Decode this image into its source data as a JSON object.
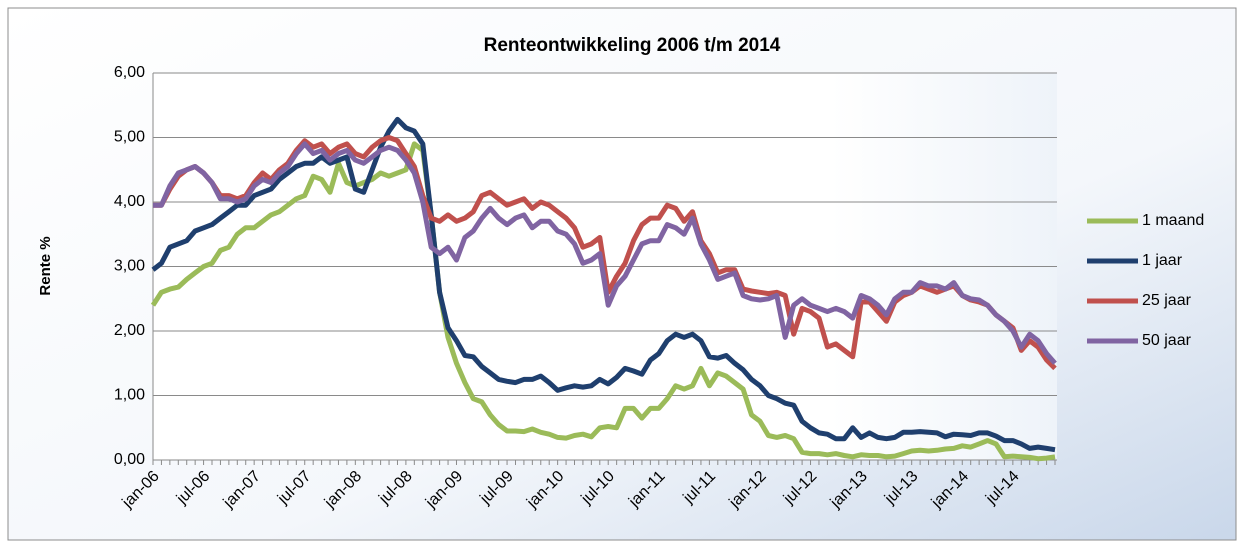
{
  "chart_data": {
    "type": "line",
    "title": "Renteontwikkeling 2006 t/m 2014",
    "y_label": "Rente %",
    "categories": [
      "jan-06",
      null,
      null,
      null,
      null,
      null,
      "jul-06",
      null,
      null,
      null,
      null,
      null,
      "jan-07",
      null,
      null,
      null,
      null,
      null,
      "jul-07",
      null,
      null,
      null,
      null,
      null,
      "jan-08",
      null,
      null,
      null,
      null,
      null,
      "jul-08",
      null,
      null,
      null,
      null,
      null,
      "jan-09",
      null,
      null,
      null,
      null,
      null,
      "jul-09",
      null,
      null,
      null,
      null,
      null,
      "jan-10",
      null,
      null,
      null,
      null,
      null,
      "jul-10",
      null,
      null,
      null,
      null,
      null,
      "jan-11",
      null,
      null,
      null,
      null,
      null,
      "jul-11",
      null,
      null,
      null,
      null,
      null,
      "jan-12",
      null,
      null,
      null,
      null,
      null,
      "jul-12",
      null,
      null,
      null,
      null,
      null,
      "jan-13",
      null,
      null,
      null,
      null,
      null,
      "jul-13",
      null,
      null,
      null,
      null,
      null,
      "jan-14",
      null,
      null,
      null,
      null,
      null,
      "jul-14",
      null,
      null,
      null,
      null,
      null
    ],
    "series": [
      {
        "name": "1 maand",
        "color": "#9bbb59",
        "values": [
          2.4,
          2.6,
          2.65,
          2.68,
          2.8,
          2.9,
          3.0,
          3.05,
          3.25,
          3.3,
          3.5,
          3.6,
          3.6,
          3.7,
          3.8,
          3.85,
          3.95,
          4.05,
          4.1,
          4.4,
          4.35,
          4.15,
          4.6,
          4.3,
          4.25,
          4.3,
          4.35,
          4.45,
          4.4,
          4.45,
          4.5,
          4.9,
          4.8,
          3.8,
          2.6,
          1.9,
          1.5,
          1.2,
          0.95,
          0.9,
          0.7,
          0.55,
          0.45,
          0.45,
          0.44,
          0.48,
          0.43,
          0.4,
          0.35,
          0.34,
          0.38,
          0.4,
          0.36,
          0.5,
          0.52,
          0.5,
          0.8,
          0.8,
          0.65,
          0.8,
          0.8,
          0.95,
          1.15,
          1.1,
          1.15,
          1.42,
          1.15,
          1.35,
          1.3,
          1.2,
          1.1,
          0.7,
          0.6,
          0.38,
          0.35,
          0.38,
          0.33,
          0.12,
          0.1,
          0.1,
          0.08,
          0.1,
          0.07,
          0.05,
          0.08,
          0.07,
          0.07,
          0.05,
          0.06,
          0.1,
          0.14,
          0.15,
          0.14,
          0.15,
          0.17,
          0.18,
          0.22,
          0.2,
          0.25,
          0.3,
          0.25,
          0.05,
          0.06,
          0.05,
          0.04,
          0.02,
          0.03,
          0.05
        ]
      },
      {
        "name": "1 jaar",
        "color": "#1f3f6e",
        "values": [
          2.95,
          3.05,
          3.3,
          3.35,
          3.4,
          3.55,
          3.6,
          3.65,
          3.75,
          3.85,
          3.95,
          3.95,
          4.1,
          4.15,
          4.2,
          4.35,
          4.45,
          4.55,
          4.6,
          4.6,
          4.7,
          4.6,
          4.65,
          4.7,
          4.2,
          4.15,
          4.5,
          4.85,
          5.1,
          5.28,
          5.15,
          5.1,
          4.9,
          3.8,
          2.6,
          2.05,
          1.85,
          1.62,
          1.6,
          1.45,
          1.35,
          1.25,
          1.22,
          1.2,
          1.25,
          1.25,
          1.3,
          1.2,
          1.08,
          1.12,
          1.15,
          1.13,
          1.15,
          1.25,
          1.18,
          1.28,
          1.42,
          1.38,
          1.33,
          1.55,
          1.65,
          1.85,
          1.95,
          1.9,
          1.95,
          1.85,
          1.6,
          1.58,
          1.62,
          1.5,
          1.4,
          1.25,
          1.15,
          1.0,
          0.95,
          0.88,
          0.85,
          0.6,
          0.5,
          0.42,
          0.4,
          0.33,
          0.33,
          0.5,
          0.35,
          0.42,
          0.35,
          0.33,
          0.35,
          0.43,
          0.43,
          0.44,
          0.43,
          0.42,
          0.36,
          0.4,
          0.39,
          0.38,
          0.42,
          0.42,
          0.37,
          0.3,
          0.3,
          0.25,
          0.18,
          0.2,
          0.18,
          0.16
        ]
      },
      {
        "name": "25 jaar",
        "color": "#c0504d",
        "values": [
          3.95,
          3.95,
          4.2,
          4.4,
          4.5,
          4.55,
          4.45,
          4.3,
          4.1,
          4.1,
          4.05,
          4.1,
          4.3,
          4.45,
          4.35,
          4.5,
          4.6,
          4.8,
          4.95,
          4.85,
          4.9,
          4.75,
          4.85,
          4.9,
          4.75,
          4.7,
          4.85,
          4.95,
          5.0,
          4.95,
          4.75,
          4.55,
          4.1,
          3.75,
          3.7,
          3.8,
          3.7,
          3.75,
          3.85,
          4.1,
          4.15,
          4.05,
          3.95,
          4.0,
          4.05,
          3.9,
          4.0,
          3.95,
          3.85,
          3.75,
          3.6,
          3.3,
          3.35,
          3.45,
          2.6,
          2.85,
          3.05,
          3.4,
          3.65,
          3.75,
          3.75,
          3.95,
          3.9,
          3.7,
          3.85,
          3.4,
          3.2,
          2.9,
          2.95,
          2.95,
          2.65,
          2.62,
          2.6,
          2.58,
          2.6,
          2.55,
          1.95,
          2.35,
          2.3,
          2.2,
          1.75,
          1.8,
          1.7,
          1.6,
          2.45,
          2.45,
          2.3,
          2.15,
          2.45,
          2.55,
          2.6,
          2.7,
          2.65,
          2.6,
          2.65,
          2.7,
          2.55,
          2.48,
          2.45,
          2.4,
          2.25,
          2.15,
          2.05,
          1.7,
          1.85,
          1.75,
          1.55,
          1.42
        ]
      },
      {
        "name": "50 jaar",
        "color": "#8064a2",
        "values": [
          3.95,
          3.95,
          4.25,
          4.45,
          4.5,
          4.55,
          4.45,
          4.3,
          4.05,
          4.05,
          4.0,
          4.05,
          4.25,
          4.35,
          4.3,
          4.45,
          4.55,
          4.75,
          4.9,
          4.75,
          4.8,
          4.65,
          4.75,
          4.8,
          4.65,
          4.6,
          4.7,
          4.8,
          4.85,
          4.8,
          4.65,
          4.45,
          4.0,
          3.3,
          3.2,
          3.3,
          3.1,
          3.45,
          3.55,
          3.75,
          3.9,
          3.75,
          3.65,
          3.75,
          3.8,
          3.6,
          3.7,
          3.7,
          3.55,
          3.5,
          3.35,
          3.05,
          3.1,
          3.2,
          2.4,
          2.7,
          2.85,
          3.1,
          3.35,
          3.4,
          3.4,
          3.65,
          3.6,
          3.5,
          3.75,
          3.35,
          3.1,
          2.8,
          2.85,
          2.9,
          2.55,
          2.5,
          2.48,
          2.5,
          2.55,
          1.9,
          2.4,
          2.5,
          2.4,
          2.35,
          2.3,
          2.35,
          2.3,
          2.2,
          2.55,
          2.5,
          2.4,
          2.25,
          2.5,
          2.6,
          2.6,
          2.75,
          2.7,
          2.7,
          2.65,
          2.75,
          2.55,
          2.5,
          2.48,
          2.4,
          2.25,
          2.15,
          2.0,
          1.75,
          1.95,
          1.85,
          1.65,
          1.5
        ]
      }
    ],
    "ylim": [
      0,
      6
    ],
    "yticks": [
      {
        "value": 0,
        "label": "0,00"
      },
      {
        "value": 1,
        "label": "1,00"
      },
      {
        "value": 2,
        "label": "2,00"
      },
      {
        "value": 3,
        "label": "3,00"
      },
      {
        "value": 4,
        "label": "4,00"
      },
      {
        "value": 5,
        "label": "5,00"
      },
      {
        "value": 6,
        "label": "6,00"
      }
    ],
    "grid": true,
    "legend": "right"
  }
}
